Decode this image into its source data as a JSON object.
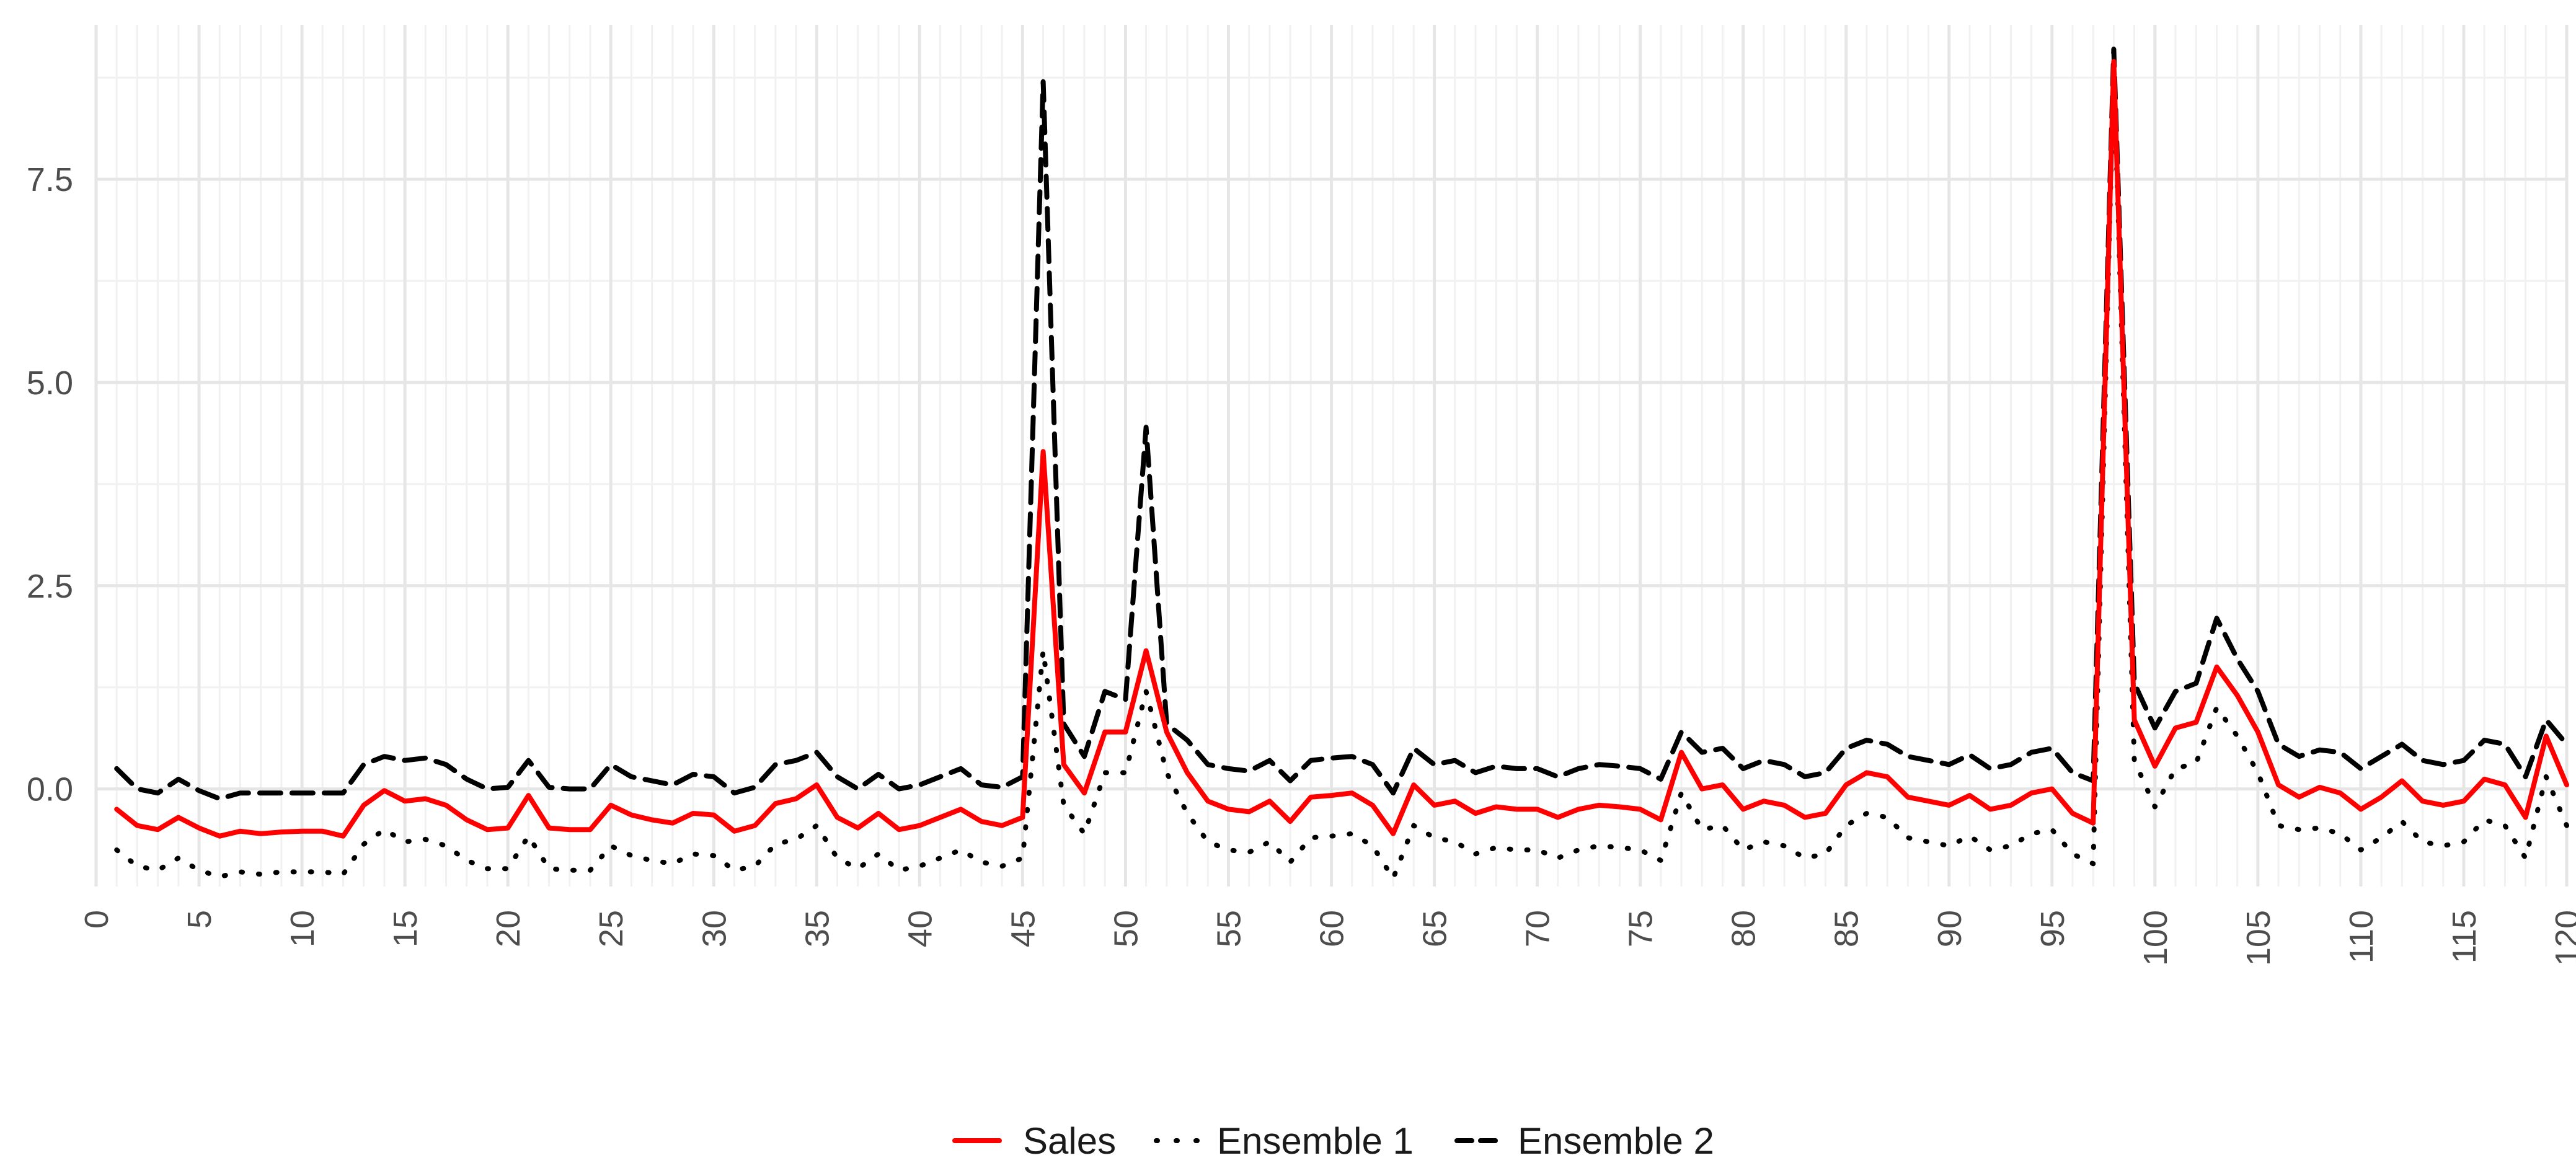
{
  "chart_data": {
    "type": "line",
    "title": "",
    "xlabel": "",
    "ylabel": "",
    "xlim": [
      0,
      120
    ],
    "ylim": [
      -1.2,
      9.4
    ],
    "x_ticks": [
      0,
      5,
      10,
      15,
      20,
      25,
      30,
      35,
      40,
      45,
      50,
      55,
      60,
      65,
      70,
      75,
      80,
      85,
      90,
      95,
      100,
      105,
      110,
      115,
      120
    ],
    "x_tick_labels": [
      "0",
      "5",
      "10",
      "15",
      "20",
      "25",
      "30",
      "35",
      "40",
      "45",
      "50",
      "55",
      "60",
      "65",
      "70",
      "75",
      "80",
      "85",
      "90",
      "95",
      "100",
      "105",
      "110",
      "115",
      "120"
    ],
    "y_ticks": [
      0,
      2.5,
      5,
      7.5
    ],
    "y_tick_labels": [
      "0.0",
      "2.5",
      "5.0",
      "7.5"
    ],
    "grid": true,
    "legend_position": "bottom",
    "x": [
      1,
      2,
      3,
      4,
      5,
      6,
      7,
      8,
      9,
      10,
      11,
      12,
      13,
      14,
      15,
      16,
      17,
      18,
      19,
      20,
      21,
      22,
      23,
      24,
      25,
      26,
      27,
      28,
      29,
      30,
      31,
      32,
      33,
      34,
      35,
      36,
      37,
      38,
      39,
      40,
      41,
      42,
      43,
      44,
      45,
      46,
      47,
      48,
      49,
      50,
      51,
      52,
      53,
      54,
      55,
      56,
      57,
      58,
      59,
      60,
      61,
      62,
      63,
      64,
      65,
      66,
      67,
      68,
      69,
      70,
      71,
      72,
      73,
      74,
      75,
      76,
      77,
      78,
      79,
      80,
      81,
      82,
      83,
      84,
      85,
      86,
      87,
      88,
      89,
      90,
      91,
      92,
      93,
      94,
      95,
      96,
      97,
      98,
      99,
      100,
      101,
      102,
      103,
      104,
      105,
      106,
      107,
      108,
      109,
      110,
      111,
      112,
      113,
      114,
      115,
      116,
      117,
      118,
      119,
      120
    ],
    "series": [
      {
        "name": "Sales",
        "color": "#ff0000",
        "dash": "solid",
        "values": [
          -0.25,
          -0.45,
          -0.5,
          -0.35,
          -0.48,
          -0.58,
          -0.52,
          -0.55,
          -0.53,
          -0.52,
          -0.52,
          -0.58,
          -0.2,
          -0.02,
          -0.15,
          -0.12,
          -0.2,
          -0.38,
          -0.5,
          -0.48,
          -0.08,
          -0.48,
          -0.5,
          -0.5,
          -0.2,
          -0.32,
          -0.38,
          -0.42,
          -0.3,
          -0.32,
          -0.52,
          -0.45,
          -0.18,
          -0.12,
          0.05,
          -0.35,
          -0.48,
          -0.3,
          -0.5,
          -0.45,
          -0.35,
          -0.25,
          -0.4,
          -0.45,
          -0.35,
          4.15,
          0.3,
          -0.05,
          0.7,
          0.7,
          1.7,
          0.7,
          0.2,
          -0.15,
          -0.25,
          -0.28,
          -0.15,
          -0.4,
          -0.1,
          -0.08,
          -0.05,
          -0.2,
          -0.55,
          0.05,
          -0.2,
          -0.15,
          -0.3,
          -0.22,
          -0.25,
          -0.25,
          -0.35,
          -0.25,
          -0.2,
          -0.22,
          -0.25,
          -0.38,
          0.45,
          0.0,
          0.05,
          -0.25,
          -0.15,
          -0.2,
          -0.35,
          -0.3,
          0.05,
          0.2,
          0.15,
          -0.1,
          -0.15,
          -0.2,
          -0.08,
          -0.25,
          -0.2,
          -0.05,
          0.0,
          -0.3,
          -0.42,
          8.95,
          0.85,
          0.28,
          0.75,
          0.82,
          1.5,
          1.15,
          0.7,
          0.05,
          -0.1,
          0.02,
          -0.05,
          -0.25,
          -0.1,
          0.1,
          -0.15,
          -0.2,
          -0.15,
          0.12,
          0.05,
          -0.35,
          0.65,
          0.05
        ]
      },
      {
        "name": "Ensemble 1",
        "color": "#000000",
        "dash": "dotted",
        "values": [
          -0.75,
          -0.95,
          -1.0,
          -0.85,
          -1.0,
          -1.08,
          -1.02,
          -1.05,
          -1.02,
          -1.02,
          -1.02,
          -1.05,
          -0.68,
          -0.5,
          -0.65,
          -0.62,
          -0.7,
          -0.88,
          -0.98,
          -0.98,
          -0.58,
          -0.98,
          -1.0,
          -1.0,
          -0.7,
          -0.82,
          -0.88,
          -0.92,
          -0.8,
          -0.82,
          -1.0,
          -0.95,
          -0.68,
          -0.62,
          -0.45,
          -0.85,
          -0.98,
          -0.8,
          -1.0,
          -0.95,
          -0.85,
          -0.75,
          -0.9,
          -0.95,
          -0.85,
          1.7,
          -0.2,
          -0.55,
          0.2,
          0.2,
          1.2,
          0.2,
          -0.3,
          -0.65,
          -0.75,
          -0.78,
          -0.65,
          -0.9,
          -0.6,
          -0.58,
          -0.55,
          -0.7,
          -1.1,
          -0.45,
          -0.6,
          -0.65,
          -0.8,
          -0.72,
          -0.75,
          -0.75,
          -0.85,
          -0.75,
          -0.7,
          -0.72,
          -0.75,
          -0.88,
          -0.05,
          -0.5,
          -0.45,
          -0.75,
          -0.65,
          -0.7,
          -0.85,
          -0.8,
          -0.45,
          -0.3,
          -0.35,
          -0.6,
          -0.65,
          -0.7,
          -0.58,
          -0.75,
          -0.7,
          -0.55,
          -0.5,
          -0.8,
          -0.92,
          8.9,
          0.35,
          -0.22,
          0.25,
          0.32,
          1.0,
          0.65,
          0.2,
          -0.45,
          -0.5,
          -0.48,
          -0.55,
          -0.75,
          -0.6,
          -0.4,
          -0.65,
          -0.7,
          -0.65,
          -0.38,
          -0.45,
          -0.85,
          0.15,
          -0.45
        ]
      },
      {
        "name": "Ensemble 2",
        "color": "#000000",
        "dash": "dashed",
        "values": [
          0.25,
          0.0,
          -0.05,
          0.12,
          -0.02,
          -0.12,
          -0.05,
          -0.05,
          -0.05,
          -0.05,
          -0.05,
          -0.05,
          0.3,
          0.4,
          0.35,
          0.38,
          0.3,
          0.12,
          0.0,
          0.02,
          0.35,
          0.02,
          0.0,
          0.0,
          0.3,
          0.15,
          0.1,
          0.05,
          0.18,
          0.15,
          -0.05,
          0.02,
          0.3,
          0.35,
          0.45,
          0.15,
          0.0,
          0.18,
          0.0,
          0.05,
          0.15,
          0.25,
          0.05,
          0.02,
          0.15,
          8.7,
          0.8,
          0.4,
          1.2,
          1.1,
          4.45,
          0.8,
          0.6,
          0.3,
          0.25,
          0.22,
          0.35,
          0.1,
          0.35,
          0.38,
          0.4,
          0.3,
          -0.05,
          0.5,
          0.3,
          0.35,
          0.2,
          0.28,
          0.25,
          0.25,
          0.15,
          0.25,
          0.3,
          0.28,
          0.25,
          0.12,
          0.7,
          0.45,
          0.5,
          0.25,
          0.35,
          0.3,
          0.15,
          0.2,
          0.5,
          0.6,
          0.55,
          0.4,
          0.35,
          0.3,
          0.42,
          0.25,
          0.3,
          0.45,
          0.5,
          0.2,
          0.1,
          9.1,
          1.3,
          0.75,
          1.2,
          1.3,
          2.1,
          1.6,
          1.2,
          0.55,
          0.4,
          0.48,
          0.45,
          0.25,
          0.4,
          0.55,
          0.35,
          0.3,
          0.35,
          0.6,
          0.55,
          0.15,
          0.85,
          0.55
        ]
      }
    ]
  }
}
